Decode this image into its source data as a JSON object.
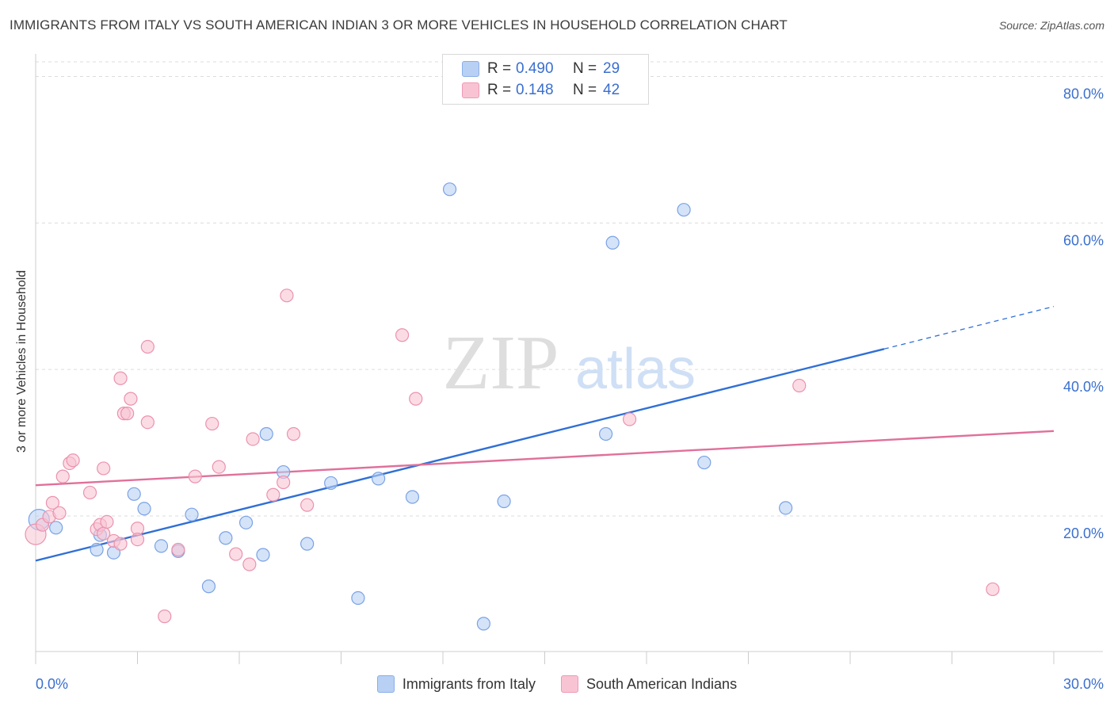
{
  "header": {
    "title": "IMMIGRANTS FROM ITALY VS SOUTH AMERICAN INDIAN 3 OR MORE VEHICLES IN HOUSEHOLD CORRELATION CHART",
    "source": "Source: ZipAtlas.com"
  },
  "watermark": {
    "zip": "ZIP",
    "atlas": "atlas"
  },
  "legend": {
    "rows": [
      {
        "r_label": "R =",
        "r_value": "0.490",
        "n_label": "N =",
        "n_value": "29",
        "color": "#b8d0f4",
        "stroke": "#8aaee8"
      },
      {
        "r_label": "R =",
        "r_value": "0.148",
        "n_label": "N =",
        "n_value": "42",
        "color": "#f8c4d4",
        "stroke": "#ee9ab4"
      }
    ]
  },
  "bottom_legend": {
    "items": [
      "Immigrants from Italy",
      "South American Indians"
    ]
  },
  "chart_data": {
    "type": "scatter",
    "ylabel": "3 or more Vehicles in Household",
    "xlabel": "",
    "xlim": [
      0,
      30
    ],
    "ylim": [
      1.5,
      82
    ],
    "x_tick_labels": [
      "0.0%",
      "30.0%"
    ],
    "y_ticks": [
      20,
      40,
      60,
      80
    ],
    "y_tick_labels": [
      "20.0%",
      "40.0%",
      "60.0%",
      "80.0%"
    ],
    "grid": true,
    "legend_position": "top-center",
    "series": [
      {
        "name": "Immigrants from Italy",
        "color": "#b8d0f4",
        "stroke": "#7aa2e6",
        "line_color": "#2f6fd6",
        "trend": {
          "x0": 0,
          "y0": 13.9,
          "x1": 25.0,
          "y1": 42.8,
          "dash_to_x": 30,
          "dash_to_y": 48.6
        },
        "points": [
          [
            0.1,
            19.5
          ],
          [
            0.6,
            18.4
          ],
          [
            1.9,
            17.4
          ],
          [
            1.8,
            15.4
          ],
          [
            2.3,
            15.0
          ],
          [
            2.9,
            23.0
          ],
          [
            3.2,
            21.0
          ],
          [
            3.7,
            15.9
          ],
          [
            4.2,
            15.2
          ],
          [
            4.6,
            20.2
          ],
          [
            5.1,
            10.4
          ],
          [
            5.6,
            17.0
          ],
          [
            6.2,
            19.1
          ],
          [
            6.7,
            14.7
          ],
          [
            6.8,
            31.2
          ],
          [
            7.3,
            26.0
          ],
          [
            8.0,
            16.2
          ],
          [
            8.7,
            24.5
          ],
          [
            9.5,
            8.8
          ],
          [
            10.1,
            25.1
          ],
          [
            11.1,
            22.6
          ],
          [
            12.2,
            64.6
          ],
          [
            13.2,
            5.3
          ],
          [
            13.8,
            22.0
          ],
          [
            16.8,
            31.2
          ],
          [
            17.0,
            57.3
          ],
          [
            19.1,
            61.8
          ],
          [
            19.7,
            27.3
          ],
          [
            22.1,
            21.1
          ]
        ]
      },
      {
        "name": "South American Indians",
        "color": "#f8c4d4",
        "stroke": "#ec92ae",
        "line_color": "#e0709a",
        "trend": {
          "x0": 0,
          "y0": 24.2,
          "x1": 30,
          "y1": 31.6
        },
        "points": [
          [
            0.0,
            17.5
          ],
          [
            0.2,
            18.8
          ],
          [
            0.4,
            19.9
          ],
          [
            0.5,
            21.8
          ],
          [
            0.7,
            20.4
          ],
          [
            0.8,
            25.4
          ],
          [
            1.0,
            27.2
          ],
          [
            1.1,
            27.6
          ],
          [
            1.6,
            23.2
          ],
          [
            1.8,
            18.2
          ],
          [
            1.9,
            18.8
          ],
          [
            2.0,
            17.6
          ],
          [
            2.0,
            26.5
          ],
          [
            2.1,
            19.2
          ],
          [
            2.3,
            16.6
          ],
          [
            2.5,
            16.2
          ],
          [
            2.5,
            38.8
          ],
          [
            2.6,
            34.0
          ],
          [
            2.7,
            34.0
          ],
          [
            2.8,
            36.0
          ],
          [
            3.0,
            18.3
          ],
          [
            3.0,
            16.8
          ],
          [
            3.3,
            32.8
          ],
          [
            3.3,
            43.1
          ],
          [
            3.8,
            6.3
          ],
          [
            4.2,
            15.4
          ],
          [
            4.7,
            25.4
          ],
          [
            5.2,
            32.6
          ],
          [
            5.4,
            26.7
          ],
          [
            5.9,
            14.8
          ],
          [
            6.3,
            13.4
          ],
          [
            6.4,
            30.5
          ],
          [
            7.0,
            22.9
          ],
          [
            7.3,
            24.6
          ],
          [
            7.4,
            50.1
          ],
          [
            7.6,
            31.2
          ],
          [
            8.0,
            21.5
          ],
          [
            10.8,
            44.7
          ],
          [
            11.2,
            36.0
          ],
          [
            17.5,
            33.2
          ],
          [
            22.5,
            37.8
          ],
          [
            28.2,
            10.0
          ]
        ]
      }
    ]
  }
}
